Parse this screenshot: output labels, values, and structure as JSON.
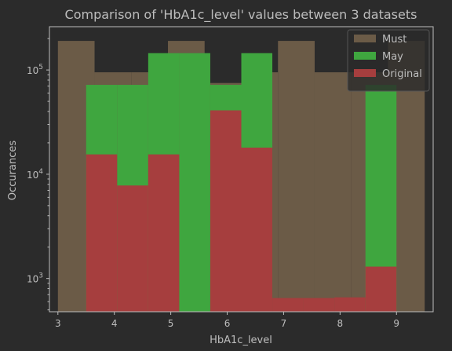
{
  "chart_data": {
    "type": "bar",
    "title": "Comparison of 'HbA1c_level' values between 3 datasets",
    "xlabel": "HbA1c_level",
    "ylabel": "Occurances",
    "xlim": [
      2.85,
      9.65
    ],
    "ylim": [
      480,
      260000
    ],
    "yscale": "log",
    "x_ticks": [
      "3",
      "4",
      "5",
      "6",
      "7",
      "8",
      "9"
    ],
    "x_tick_values": [
      3,
      4,
      5,
      6,
      7,
      8,
      9
    ],
    "y_ticks": [
      {
        "value": 1000,
        "base": "10",
        "exp": "3"
      },
      {
        "value": 10000,
        "base": "10",
        "exp": "4"
      },
      {
        "value": 100000,
        "base": "10",
        "exp": "5"
      }
    ],
    "legend_position": "upper-right",
    "series": [
      {
        "name": "Must",
        "color": "#6b5b47",
        "bins": [
          {
            "x0": 3.0,
            "x1": 3.65,
            "value": 190000
          },
          {
            "x0": 3.65,
            "x1": 4.3,
            "value": 95000
          },
          {
            "x0": 4.3,
            "x1": 4.95,
            "value": 95000
          },
          {
            "x0": 4.95,
            "x1": 5.6,
            "value": 190000
          },
          {
            "x0": 5.6,
            "x1": 6.25,
            "value": 75000
          },
          {
            "x0": 6.25,
            "x1": 6.9,
            "value": 95000
          },
          {
            "x0": 6.9,
            "x1": 7.55,
            "value": 190000
          },
          {
            "x0": 7.55,
            "x1": 8.2,
            "value": 95000
          },
          {
            "x0": 8.2,
            "x1": 8.85,
            "value": 95000
          },
          {
            "x0": 8.85,
            "x1": 9.5,
            "value": 190000
          }
        ]
      },
      {
        "name": "May",
        "color": "#3fa63f",
        "bins": [
          {
            "x0": 3.5,
            "x1": 4.05,
            "value": 72000
          },
          {
            "x0": 4.05,
            "x1": 4.6,
            "value": 72000
          },
          {
            "x0": 4.6,
            "x1": 5.15,
            "value": 145000
          },
          {
            "x0": 5.15,
            "x1": 5.7,
            "value": 145000
          },
          {
            "x0": 5.7,
            "x1": 6.25,
            "value": 72000
          },
          {
            "x0": 6.25,
            "x1": 6.8,
            "value": 145000
          },
          {
            "x0": 8.45,
            "x1": 9.0,
            "value": 72000
          }
        ]
      },
      {
        "name": "Original",
        "color": "#a63e3e",
        "bins": [
          {
            "x0": 3.5,
            "x1": 4.05,
            "value": 15500
          },
          {
            "x0": 4.05,
            "x1": 4.6,
            "value": 7800
          },
          {
            "x0": 4.6,
            "x1": 5.15,
            "value": 15500
          },
          {
            "x0": 5.15,
            "x1": 5.7,
            "value": 0
          },
          {
            "x0": 5.7,
            "x1": 6.25,
            "value": 41000
          },
          {
            "x0": 6.25,
            "x1": 6.8,
            "value": 18000
          },
          {
            "x0": 6.8,
            "x1": 7.35,
            "value": 650
          },
          {
            "x0": 7.35,
            "x1": 7.9,
            "value": 650
          },
          {
            "x0": 7.9,
            "x1": 8.45,
            "value": 660
          },
          {
            "x0": 8.45,
            "x1": 9.0,
            "value": 1300
          }
        ]
      }
    ],
    "colors": {
      "background": "#2b2b2b",
      "text": "#bdbdbd",
      "axis": "#bdbdbd",
      "legend_bg": "#2b2b2b",
      "legend_border": "#555555"
    }
  }
}
